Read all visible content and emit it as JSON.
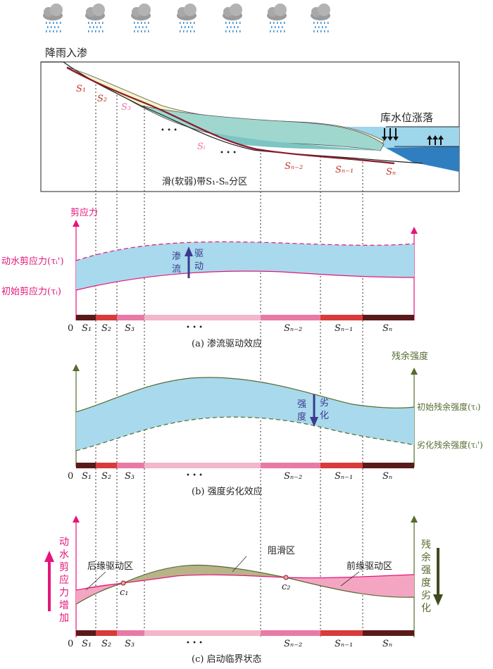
{
  "top": {
    "rain_label": "降雨入渗",
    "reservoir_label": "库水位涨落",
    "zone_caption": "滑(软弱)带S₁-Sₙ分区",
    "slice_labels": [
      "S₁",
      "S₂",
      "S₃",
      "Sᵢ",
      "Sₙ₋₂",
      "Sₙ₋₁",
      "Sₙ"
    ],
    "ellipsis": "• • •"
  },
  "panel_a": {
    "axis_label": "剪应力",
    "upper_curve_label": "动水剪应力(τᵢ')",
    "lower_curve_label": "初始剪应力(τᵢ)",
    "drive_text_1": "渗",
    "drive_text_2": "流",
    "drive_text_3": "驱",
    "drive_text_4": "动",
    "zero": "0",
    "caption": "(a) 渗流驱动效应"
  },
  "panel_b": {
    "axis_label": "残余强度",
    "upper_curve_label": "初始残余强度(τᵢ)",
    "lower_curve_label": "劣化残余强度(τᵢ')",
    "text_1": "强",
    "text_2": "度",
    "text_3": "劣",
    "text_4": "化",
    "zero": "0",
    "caption": "(b) 强度劣化效应"
  },
  "panel_c": {
    "left_vertical_label": [
      "动",
      "水",
      "剪",
      "应",
      "力",
      "增",
      "加"
    ],
    "right_vertical_label": [
      "残",
      "余",
      "强",
      "度",
      "劣",
      "化"
    ],
    "rear_zone": "后缘驱动区",
    "resist_zone": "阻滑区",
    "front_zone": "前缘驱动区",
    "c1": "c₁",
    "c2": "c₂",
    "zero": "0",
    "caption": "(c) 启动临界状态"
  },
  "axis_ticks": [
    "S₁",
    "S₂",
    "S₃",
    "• • •",
    "Sₙ₋₂",
    "Sₙ₋₁",
    "Sₙ"
  ],
  "colors": {
    "pink": "#e4157b",
    "olive": "#556b2f",
    "water": "#a9d9ec",
    "deep_water": "#2f7fc0",
    "yellow": "#f6f3c8",
    "teal": "#9fd7cf"
  }
}
